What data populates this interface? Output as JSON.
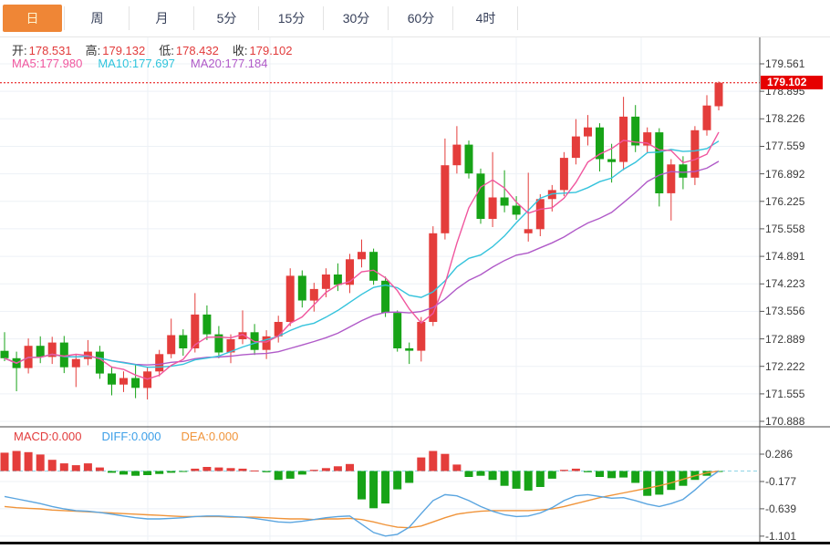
{
  "tabs": {
    "items": [
      {
        "label": "日",
        "selected": true
      },
      {
        "label": "周",
        "selected": false
      },
      {
        "label": "月",
        "selected": false
      },
      {
        "label": "5分",
        "selected": false
      },
      {
        "label": "15分",
        "selected": false
      },
      {
        "label": "30分",
        "selected": false
      },
      {
        "label": "60分",
        "selected": false
      },
      {
        "label": "4时",
        "selected": false
      }
    ]
  },
  "info": {
    "ohlc": [
      {
        "label": "开:",
        "value": "178.531"
      },
      {
        "label": "高:",
        "value": "179.132"
      },
      {
        "label": "低:",
        "value": "178.432"
      },
      {
        "label": "收:",
        "value": "179.102"
      }
    ],
    "ma": [
      {
        "label": "MA5:",
        "value": "177.980",
        "color": "#f0569e"
      },
      {
        "label": "MA10:",
        "value": "177.697",
        "color": "#2fc4dc"
      },
      {
        "label": "MA20:",
        "value": "177.184",
        "color": "#b05ac8"
      }
    ],
    "macd": [
      {
        "label": "MACD:",
        "value": "0.000",
        "color": "#e23b3b"
      },
      {
        "label": "DIFF:",
        "value": "0.000",
        "color": "#3d9fe8"
      },
      {
        "label": "DEA:",
        "value": "0.000",
        "color": "#f0943a"
      }
    ]
  },
  "price_tag": {
    "value": "179.102",
    "bg": "#e60000"
  },
  "colors": {
    "up": "#e43d3b",
    "down": "#17a317",
    "ma5": "#f0569e",
    "ma10": "#35c3dc",
    "ma20": "#b05ac8",
    "diff": "#5aa5e0",
    "dea": "#f0943a",
    "tag_bg": "#e60000",
    "tab_accent": "#ef8636",
    "grid": "#edf1f6",
    "axis": "#555555",
    "dotted_price": "#e60000",
    "macd_zero": "#8fd4e6"
  },
  "chart_data": {
    "type": "candlestick",
    "title": "",
    "xlabel": "",
    "legend_position": "top-left-overlay",
    "grid": true,
    "panels": [
      {
        "name": "price",
        "ylim": [
          170.55,
          180.23
        ],
        "y_ticks": [
          "179.561",
          "178.895",
          "178.226",
          "177.559",
          "176.892",
          "176.225",
          "175.558",
          "174.891",
          "174.223",
          "173.556",
          "172.889",
          "172.222",
          "171.555",
          "170.888"
        ],
        "current_price": 179.102,
        "overlays": [
          "MA5",
          "MA10",
          "MA20"
        ],
        "candles": [
          [
            172.6,
            173.05,
            172.35,
            172.42
          ],
          [
            172.42,
            172.58,
            171.62,
            172.18
          ],
          [
            172.18,
            172.9,
            172.05,
            172.72
          ],
          [
            172.72,
            172.95,
            172.3,
            172.45
          ],
          [
            172.45,
            172.94,
            172.28,
            172.8
          ],
          [
            172.8,
            172.96,
            172.06,
            172.2
          ],
          [
            172.2,
            172.5,
            171.72,
            172.4
          ],
          [
            172.4,
            172.86,
            172.25,
            172.58
          ],
          [
            172.58,
            172.72,
            171.92,
            172.05
          ],
          [
            172.05,
            172.22,
            171.52,
            171.78
          ],
          [
            171.78,
            172.1,
            171.6,
            171.94
          ],
          [
            171.94,
            172.25,
            171.45,
            171.7
          ],
          [
            171.7,
            172.2,
            171.42,
            172.1
          ],
          [
            172.1,
            172.62,
            171.98,
            172.52
          ],
          [
            172.52,
            173.38,
            172.42,
            172.98
          ],
          [
            172.98,
            173.12,
            172.48,
            172.66
          ],
          [
            172.66,
            174.0,
            172.56,
            173.48
          ],
          [
            173.48,
            173.7,
            172.86,
            173.0
          ],
          [
            173.0,
            173.2,
            172.42,
            172.56
          ],
          [
            172.56,
            173.0,
            172.3,
            172.88
          ],
          [
            172.88,
            173.58,
            172.76,
            173.05
          ],
          [
            173.05,
            173.25,
            172.5,
            172.62
          ],
          [
            172.62,
            173.1,
            172.4,
            172.95
          ],
          [
            172.95,
            173.45,
            172.8,
            173.3
          ],
          [
            173.3,
            174.6,
            173.2,
            174.42
          ],
          [
            174.42,
            174.55,
            173.65,
            173.82
          ],
          [
            173.82,
            174.25,
            173.55,
            174.1
          ],
          [
            174.1,
            174.6,
            173.9,
            174.45
          ],
          [
            174.45,
            174.72,
            174.05,
            174.2
          ],
          [
            174.2,
            174.95,
            174.0,
            174.82
          ],
          [
            174.82,
            175.3,
            174.62,
            175.0
          ],
          [
            175.0,
            175.08,
            174.2,
            174.3
          ],
          [
            174.3,
            174.4,
            173.42,
            173.52
          ],
          [
            173.52,
            173.58,
            172.58,
            172.66
          ],
          [
            172.66,
            172.8,
            172.28,
            172.6
          ],
          [
            172.6,
            173.42,
            172.34,
            173.3
          ],
          [
            173.3,
            175.62,
            173.2,
            175.45
          ],
          [
            175.45,
            177.75,
            175.3,
            177.1
          ],
          [
            177.1,
            178.05,
            176.9,
            177.6
          ],
          [
            177.6,
            177.7,
            176.78,
            176.9
          ],
          [
            176.9,
            177.02,
            175.68,
            175.8
          ],
          [
            175.8,
            177.42,
            175.6,
            176.32
          ],
          [
            176.32,
            176.98,
            175.96,
            176.12
          ],
          [
            176.12,
            176.35,
            175.78,
            175.9
          ],
          [
            175.45,
            176.92,
            175.25,
            175.55
          ],
          [
            175.55,
            176.4,
            175.38,
            176.28
          ],
          [
            176.28,
            176.62,
            175.98,
            176.5
          ],
          [
            176.5,
            177.42,
            176.35,
            177.28
          ],
          [
            177.28,
            178.22,
            177.12,
            177.8
          ],
          [
            177.8,
            178.32,
            177.58,
            178.02
          ],
          [
            178.02,
            178.12,
            176.95,
            177.25
          ],
          [
            177.25,
            177.62,
            176.68,
            177.18
          ],
          [
            177.18,
            178.76,
            176.98,
            178.28
          ],
          [
            178.28,
            178.56,
            177.42,
            177.58
          ],
          [
            177.58,
            178.02,
            177.4,
            177.9
          ],
          [
            177.9,
            178.0,
            176.1,
            176.42
          ],
          [
            176.42,
            177.25,
            175.76,
            177.12
          ],
          [
            177.12,
            177.32,
            176.52,
            176.8
          ],
          [
            176.8,
            178.05,
            176.62,
            177.95
          ],
          [
            177.95,
            178.8,
            177.82,
            178.55
          ],
          [
            178.531,
            179.132,
            178.432,
            179.102
          ]
        ]
      },
      {
        "name": "macd",
        "ylim": [
          -1.19,
          0.75
        ],
        "y_ticks": [
          "0.286",
          "-0.177",
          "-0.639",
          "-1.101"
        ],
        "hist": [
          0.31,
          0.34,
          0.32,
          0.28,
          0.19,
          0.13,
          0.1,
          0.13,
          0.06,
          -0.03,
          -0.06,
          -0.08,
          -0.07,
          -0.05,
          -0.03,
          -0.01,
          0.04,
          0.07,
          0.06,
          0.05,
          0.04,
          0.01,
          -0.02,
          -0.15,
          -0.13,
          -0.06,
          0.02,
          0.05,
          0.08,
          0.12,
          -0.48,
          -0.63,
          -0.55,
          -0.31,
          -0.2,
          0.23,
          0.34,
          0.29,
          0.11,
          -0.1,
          -0.08,
          -0.15,
          -0.25,
          -0.3,
          -0.33,
          -0.27,
          -0.13,
          0.02,
          0.04,
          -0.02,
          -0.1,
          -0.12,
          -0.11,
          -0.2,
          -0.42,
          -0.4,
          -0.32,
          -0.25,
          -0.15,
          -0.08,
          -0.01
        ],
        "diff": [
          -0.43,
          -0.47,
          -0.51,
          -0.55,
          -0.6,
          -0.64,
          -0.67,
          -0.68,
          -0.7,
          -0.73,
          -0.76,
          -0.79,
          -0.81,
          -0.81,
          -0.8,
          -0.79,
          -0.77,
          -0.76,
          -0.76,
          -0.77,
          -0.78,
          -0.8,
          -0.83,
          -0.86,
          -0.87,
          -0.85,
          -0.82,
          -0.79,
          -0.77,
          -0.76,
          -0.9,
          -1.04,
          -1.1,
          -1.07,
          -0.95,
          -0.72,
          -0.5,
          -0.4,
          -0.42,
          -0.5,
          -0.6,
          -0.68,
          -0.74,
          -0.77,
          -0.76,
          -0.71,
          -0.62,
          -0.5,
          -0.42,
          -0.4,
          -0.43,
          -0.46,
          -0.45,
          -0.5,
          -0.56,
          -0.6,
          -0.55,
          -0.48,
          -0.32,
          -0.14,
          0.0
        ],
        "dea": [
          -0.6,
          -0.62,
          -0.63,
          -0.64,
          -0.66,
          -0.67,
          -0.68,
          -0.69,
          -0.7,
          -0.71,
          -0.72,
          -0.73,
          -0.74,
          -0.75,
          -0.76,
          -0.77,
          -0.77,
          -0.77,
          -0.77,
          -0.78,
          -0.78,
          -0.78,
          -0.79,
          -0.8,
          -0.81,
          -0.81,
          -0.82,
          -0.81,
          -0.81,
          -0.8,
          -0.82,
          -0.86,
          -0.91,
          -0.95,
          -0.96,
          -0.93,
          -0.86,
          -0.79,
          -0.73,
          -0.7,
          -0.68,
          -0.67,
          -0.67,
          -0.67,
          -0.67,
          -0.66,
          -0.64,
          -0.6,
          -0.55,
          -0.5,
          -0.45,
          -0.41,
          -0.37,
          -0.33,
          -0.29,
          -0.25,
          -0.2,
          -0.14,
          -0.08,
          -0.03,
          0.0
        ]
      }
    ]
  }
}
